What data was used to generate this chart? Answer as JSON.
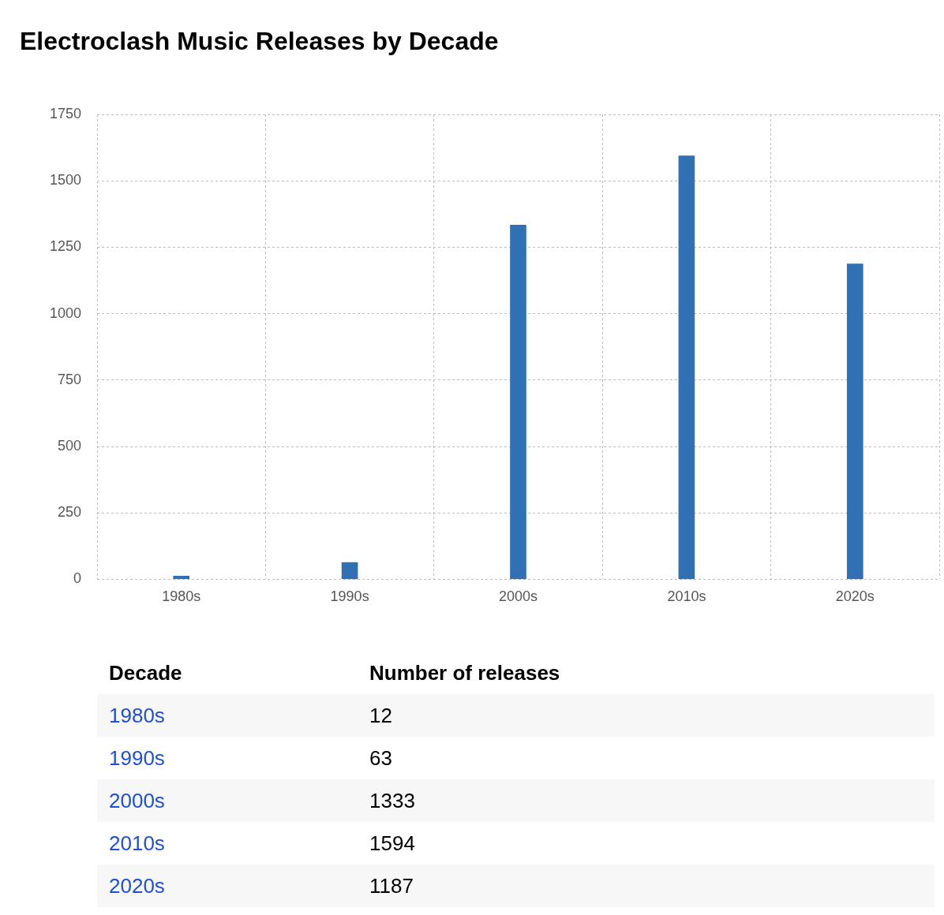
{
  "chart_data": {
    "type": "bar",
    "title": "Electroclash Music Releases by Decade",
    "categories": [
      "1980s",
      "1990s",
      "2000s",
      "2010s",
      "2020s"
    ],
    "values": [
      12,
      63,
      1333,
      1594,
      1187
    ],
    "color": "#3070b3",
    "ylim": [
      0,
      1750
    ],
    "yticks": [
      0,
      250,
      500,
      750,
      1000,
      1250,
      1500,
      1750
    ],
    "grid": true,
    "annotations": [
      "Decade",
      "Number of releases",
      "12",
      "63",
      "1333",
      "1594",
      "1187"
    ]
  }
}
